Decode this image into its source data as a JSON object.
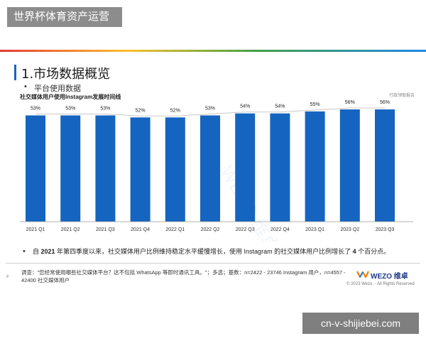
{
  "header": {
    "banner_title": "世界杯体育资产运营"
  },
  "slide": {
    "title": "1.市场数据概览",
    "bullet_symbol": "•",
    "sub_bullet": "平台使用数据",
    "chart_title": "社交媒体用户使用Instagram发展时间线",
    "brand_note": "行政领取报告",
    "watermark_text": "WEZO 维卓"
  },
  "chart_data": {
    "type": "bar",
    "title": "社交媒体用户使用Instagram发展时间线",
    "categories": [
      "2021 Q1",
      "2021 Q2",
      "2021 Q3",
      "2021 Q4",
      "2022 Q1",
      "2022 Q2",
      "2022 Q3",
      "2022 Q4",
      "2023 Q1",
      "2023 Q2",
      "2023 Q3"
    ],
    "values": [
      53,
      53,
      53,
      52,
      52,
      53,
      54,
      54,
      55,
      56,
      56
    ],
    "value_labels": [
      "53%",
      "53%",
      "53%",
      "52%",
      "52%",
      "53%",
      "54%",
      "54%",
      "55%",
      "56%",
      "56%"
    ],
    "unit": "%",
    "bar_color": "#1565c0",
    "trend_line": true,
    "grid": false,
    "ylim": [
      0,
      56
    ]
  },
  "note": {
    "prefix": "自 ",
    "year": "2021",
    "middle": " 年第四季度以来，社交媒体用户比例维持稳定水平缓慢增长，使用 Instagram 的社交媒体用户比例增长了 ",
    "number": "4",
    "suffix": " 个百分点。"
  },
  "footer": {
    "marker": "※",
    "source": "调查：\"您经常使用哪些社交媒体平台？这不包括 WhatsApp 等即时通讯工具。\"；多选；基数：n=2422 - 23746 Instagram 用户，n=4557 - 42400 社交媒体用户",
    "logo_text": "WEZO 维卓",
    "copyright": "© 2023 Wezo. - All Rights Reserved"
  },
  "watermark": {
    "url_text": "cn-v-shijiebei.com"
  },
  "colors": {
    "banner_bg": "#8c8c8c",
    "bar": "#1565c0",
    "accent": "#1565c0"
  }
}
